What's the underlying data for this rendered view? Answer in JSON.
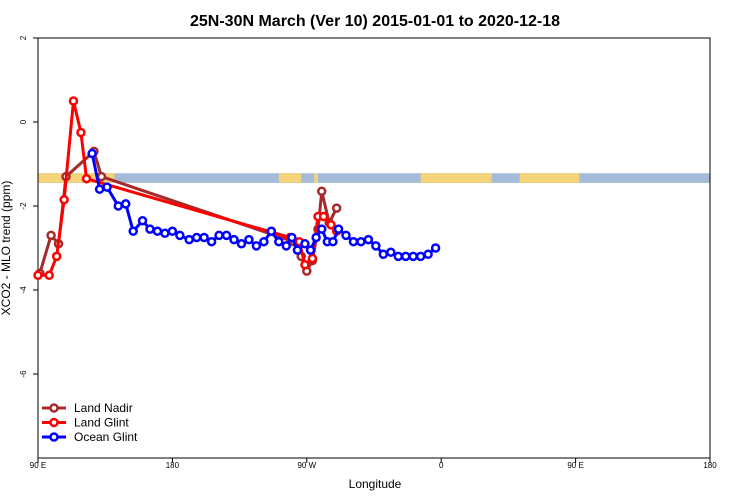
{
  "chart_data": {
    "type": "line",
    "title": "25N-30N March (Ver 10)   2015-01-01 to 2020-12-18",
    "xlabel": "Longitude",
    "ylabel": "XCO2 - MLO trend (ppm)",
    "xlim": [
      -90,
      270
    ],
    "ylim": [
      -8,
      2
    ],
    "xticks": [
      {
        "value": -90,
        "label": "90 E"
      },
      {
        "value": -18,
        "label": "180"
      },
      {
        "value": 54,
        "label": "90 W"
      },
      {
        "value": 126,
        "label": "0"
      },
      {
        "value": 198,
        "label": "90 E"
      },
      {
        "value": 270,
        "label": "180"
      }
    ],
    "yticks": [
      {
        "value": 2,
        "label": "2"
      },
      {
        "value": 0,
        "label": "0"
      },
      {
        "value": -2,
        "label": "-2"
      },
      {
        "value": -4,
        "label": "-4"
      },
      {
        "value": -6,
        "label": "-6"
      }
    ],
    "land_ocean_band": {
      "y_top": -1.22,
      "y_bottom": -1.45,
      "ocean_color": "#a4bcd9",
      "land_color": "#f4d37a",
      "land_segments": [
        [
          -90,
          -49
        ],
        [
          39,
          51
        ],
        [
          58,
          60
        ],
        [
          115,
          153
        ],
        [
          168,
          200
        ]
      ]
    },
    "series": [
      {
        "name": "Land Nadir",
        "color": "#a52a2a",
        "x": [
          -89,
          -83,
          -79,
          -75,
          -60,
          -56,
          47,
          51,
          54,
          57,
          60,
          62,
          66,
          70
        ],
        "y": [
          -3.6,
          -2.7,
          -2.9,
          -1.3,
          -0.7,
          -1.3,
          -2.85,
          -3.2,
          -3.55,
          -3.3,
          -2.55,
          -1.65,
          -2.4,
          -2.05
        ]
      },
      {
        "name": "Land Glint",
        "color": "#ff0000",
        "x": [
          -90,
          -84,
          -80,
          -76,
          -71,
          -67,
          -64,
          45,
          50,
          53,
          57,
          60,
          63,
          67,
          70
        ],
        "y": [
          -3.65,
          -3.65,
          -3.2,
          -1.85,
          0.5,
          -0.25,
          -1.35,
          -2.75,
          -2.85,
          -3.4,
          -3.25,
          -2.25,
          -2.25,
          -2.45,
          -2.6
        ]
      },
      {
        "name": "Ocean Glint",
        "color": "#0000ff",
        "x": [
          -61,
          -57,
          -53,
          -47,
          -43,
          -39,
          -34,
          -30,
          -26,
          -22,
          -18,
          -14,
          -9,
          -5,
          -1,
          3,
          7,
          11,
          15,
          19,
          23,
          27,
          31,
          35,
          39,
          43,
          46,
          49,
          53,
          56,
          59,
          62,
          65,
          68,
          71,
          75,
          79,
          83,
          87,
          91,
          95,
          99,
          103,
          107,
          111,
          115,
          119,
          123
        ],
        "y": [
          -0.75,
          -1.6,
          -1.55,
          -2.0,
          -1.95,
          -2.6,
          -2.35,
          -2.55,
          -2.6,
          -2.65,
          -2.6,
          -2.7,
          -2.8,
          -2.75,
          -2.75,
          -2.85,
          -2.7,
          -2.7,
          -2.8,
          -2.9,
          -2.8,
          -2.95,
          -2.85,
          -2.6,
          -2.85,
          -2.95,
          -2.75,
          -3.05,
          -2.9,
          -3.05,
          -2.75,
          -2.55,
          -2.85,
          -2.85,
          -2.55,
          -2.7,
          -2.85,
          -2.85,
          -2.8,
          -2.95,
          -3.15,
          -3.1,
          -3.2,
          -3.2,
          -3.2,
          -3.2,
          -3.15,
          -3.0
        ]
      }
    ],
    "legend": {
      "position": "bottom-left",
      "entries": [
        "Land Nadir",
        "Land Glint",
        "Ocean Glint"
      ]
    }
  }
}
